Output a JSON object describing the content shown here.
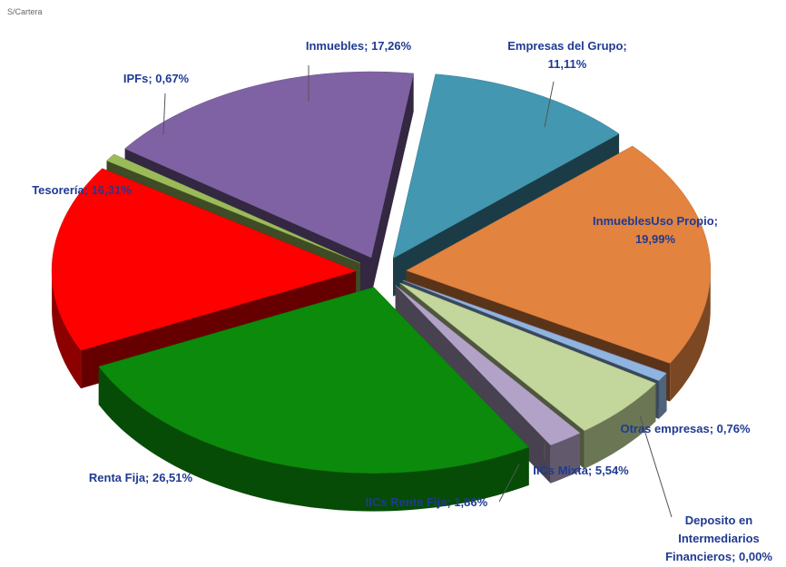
{
  "chart_data": {
    "type": "pie",
    "title": "S/Cartera",
    "values": [
      11.11,
      19.99,
      0.0,
      0.76,
      5.54,
      1.86,
      26.51,
      16.31,
      0.67,
      17.26
    ],
    "value_labels": [
      "Empresas del Grupo;\n11,11%",
      "InmueblesUso Propio;\n19,99%",
      "Deposito en\nIntermediarios\nFinancieros; 0,00%",
      "Otras empresas; 0,76%",
      "IICs Mixta; 5,54%",
      "IICs Renta Fija; 1,86%",
      "Renta Fija; 26,51%",
      "Tesorería; 16,31%",
      "IPFs; 0,67%",
      "Inmuebles; 17,26%"
    ],
    "colors": [
      "#4397b0",
      "#e2833f",
      "#8c4b4b",
      "#8fb4e0",
      "#c3d69b",
      "#b3a2c7",
      "#0b8a0b",
      "#ff0000",
      "#9bbb59",
      "#7f62a3"
    ]
  }
}
